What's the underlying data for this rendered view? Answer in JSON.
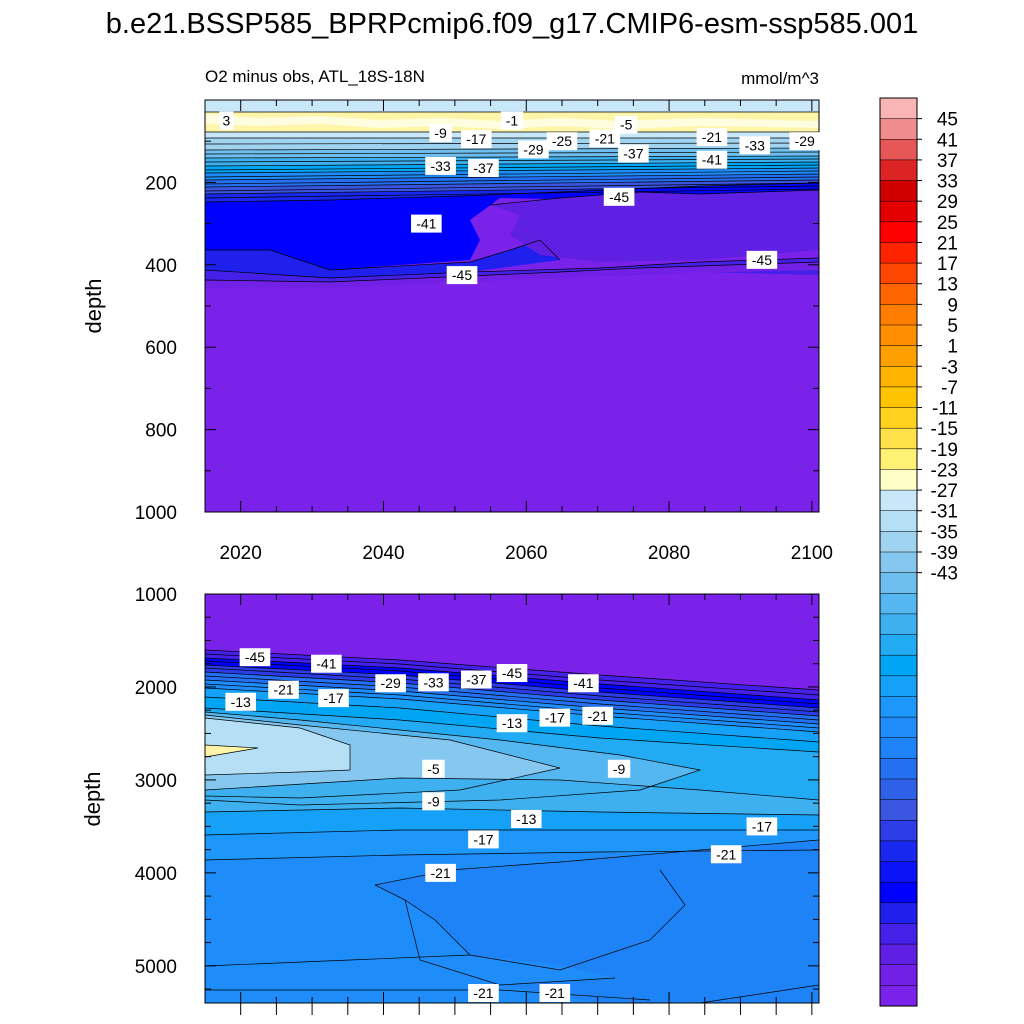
{
  "title": "b.e21.BSSP585_BPRPcmip6.f09_g17.CMIP6-esm-ssp585.001",
  "chart_data": [
    {
      "type": "heatmap",
      "panel": "top",
      "subtitle_left": "O2 minus obs, ATL_18S-18N",
      "subtitle_right": "mmol/m^3",
      "xlabel": "",
      "ylabel": "depth",
      "xlim": [
        2015,
        2101
      ],
      "ylim": [
        1000,
        0
      ],
      "x_ticks": [
        2020,
        2040,
        2060,
        2080,
        2100
      ],
      "x_tick_labels": [
        "2020",
        "2040",
        "2060",
        "2080",
        "2100"
      ],
      "y_ticks": [
        200,
        400,
        600,
        800,
        1000
      ],
      "y_tick_labels": [
        "200",
        "400",
        "600",
        "800",
        "1000"
      ],
      "contour_labels": [
        {
          "text": "3",
          "x": 2018,
          "y": 50
        },
        {
          "text": "-1",
          "x": 2058,
          "y": 50
        },
        {
          "text": "-5",
          "x": 2074,
          "y": 60
        },
        {
          "text": "-9",
          "x": 2048,
          "y": 80
        },
        {
          "text": "-17",
          "x": 2053,
          "y": 95
        },
        {
          "text": "-25",
          "x": 2065,
          "y": 100
        },
        {
          "text": "-21",
          "x": 2071,
          "y": 93
        },
        {
          "text": "-21",
          "x": 2086,
          "y": 90
        },
        {
          "text": "-29",
          "x": 2061,
          "y": 120
        },
        {
          "text": "-33",
          "x": 2092,
          "y": 110
        },
        {
          "text": "-29",
          "x": 2099,
          "y": 100
        },
        {
          "text": "-37",
          "x": 2075,
          "y": 130
        },
        {
          "text": "-41",
          "x": 2086,
          "y": 145
        },
        {
          "text": "-33",
          "x": 2048,
          "y": 160
        },
        {
          "text": "-37",
          "x": 2054,
          "y": 165
        },
        {
          "text": "-45",
          "x": 2073,
          "y": 235
        },
        {
          "text": "-41",
          "x": 2046,
          "y": 300
        },
        {
          "text": "-45",
          "x": 2051,
          "y": 425
        },
        {
          "text": "-45",
          "x": 2093,
          "y": 388
        }
      ]
    },
    {
      "type": "heatmap",
      "panel": "bottom",
      "xlabel": "",
      "ylabel": "depth",
      "xlim": [
        2015,
        2101
      ],
      "ylim": [
        5400,
        1000
      ],
      "x_ticks": [
        2020,
        2040,
        2060,
        2080,
        2100
      ],
      "y_ticks": [
        1000,
        2000,
        3000,
        4000,
        5000
      ],
      "y_tick_labels": [
        "1000",
        "2000",
        "3000",
        "4000",
        "5000"
      ],
      "contour_labels": [
        {
          "text": "-45",
          "x": 2022,
          "y": 1680
        },
        {
          "text": "-41",
          "x": 2032,
          "y": 1750
        },
        {
          "text": "-29",
          "x": 2041,
          "y": 1960
        },
        {
          "text": "-33",
          "x": 2047,
          "y": 1950
        },
        {
          "text": "-37",
          "x": 2053,
          "y": 1920
        },
        {
          "text": "-45",
          "x": 2058,
          "y": 1850
        },
        {
          "text": "-41",
          "x": 2068,
          "y": 1960
        },
        {
          "text": "-13",
          "x": 2020,
          "y": 2160
        },
        {
          "text": "-21",
          "x": 2026,
          "y": 2030
        },
        {
          "text": "-17",
          "x": 2033,
          "y": 2120
        },
        {
          "text": "-13",
          "x": 2058,
          "y": 2390
        },
        {
          "text": "-17",
          "x": 2064,
          "y": 2330
        },
        {
          "text": "-21",
          "x": 2070,
          "y": 2310
        },
        {
          "text": "-5",
          "x": 2047,
          "y": 2880
        },
        {
          "text": "-9",
          "x": 2073,
          "y": 2880
        },
        {
          "text": "-9",
          "x": 2047,
          "y": 3230
        },
        {
          "text": "-13",
          "x": 2060,
          "y": 3420
        },
        {
          "text": "-17",
          "x": 2054,
          "y": 3640
        },
        {
          "text": "-17",
          "x": 2093,
          "y": 3500
        },
        {
          "text": "-21",
          "x": 2088,
          "y": 3800
        },
        {
          "text": "-21",
          "x": 2048,
          "y": 4000
        },
        {
          "text": "-21",
          "x": 2054,
          "y": 5830
        },
        {
          "text": "-21",
          "x": 2064,
          "y": 6380
        }
      ]
    }
  ],
  "colorbar": {
    "tick_labels": [
      "45",
      "41",
      "37",
      "33",
      "29",
      "25",
      "21",
      "17",
      "13",
      "9",
      "5",
      "1",
      "-3",
      "-7",
      "-11",
      "-15",
      "-19",
      "-23",
      "-27",
      "-31",
      "-35",
      "-39",
      "-43"
    ],
    "colors": [
      "#f9b4b4",
      "#ef8c8c",
      "#e75757",
      "#dc2424",
      "#d00000",
      "#e40000",
      "#ff0000",
      "#ff2400",
      "#ff4600",
      "#ff6600",
      "#ff7e00",
      "#ff8f00",
      "#ffa000",
      "#ffb400",
      "#ffc400",
      "#ffd21e",
      "#ffe24a",
      "#fff173",
      "#ffffc8",
      "#c8e8fa",
      "#b5dff5",
      "#a0d3f0",
      "#86c7ef",
      "#6ebfef",
      "#55b7ef",
      "#3eb0f0",
      "#22aaf2",
      "#00a5f4",
      "#16a1f8",
      "#1e97fa",
      "#1e8dfa",
      "#1e83f6",
      "#246ff2",
      "#2e60e8",
      "#3a55e0",
      "#2c3ce6",
      "#1828ee",
      "#0a14f6",
      "#0000ff",
      "#2020ee",
      "#4420e8",
      "#6020e4",
      "#7320e6",
      "#7b22ea"
    ]
  }
}
